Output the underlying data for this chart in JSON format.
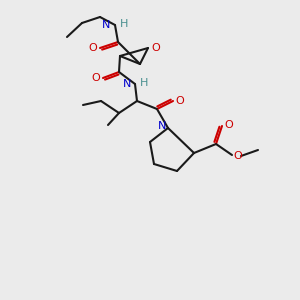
{
  "background_color": "#ebebeb",
  "bond_color": "#1a1a1a",
  "atom_colors": {
    "N": "#0000cc",
    "O": "#cc0000",
    "H": "#4a9090",
    "C": "#1a1a1a"
  },
  "figsize": [
    3.0,
    3.0
  ],
  "dpi": 100
}
